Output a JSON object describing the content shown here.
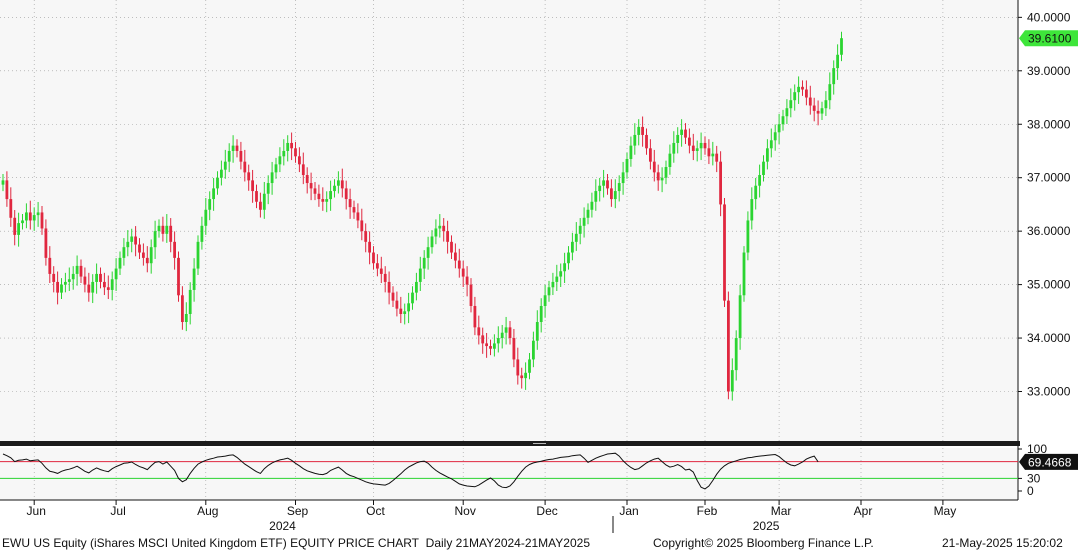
{
  "chart_data": {
    "type": "candlestick",
    "title": "EWU US Equity (iShares MSCI United Kingdom ETF) EQUITY PRICE CHART",
    "period": "Daily 21MAY2024-21MAY2025",
    "copyright": "Copyright© 2025 Bloomberg Finance L.P.",
    "timestamp": "21-May-2025 15:20:02",
    "price_axis": {
      "ylim": [
        32.25,
        40.2
      ],
      "ticks": [
        "33.0000",
        "34.0000",
        "35.0000",
        "36.0000",
        "37.0000",
        "38.0000",
        "39.0000",
        "40.0000"
      ],
      "last_value": "39.6100"
    },
    "months": [
      {
        "label": "Jun",
        "offset": 8
      },
      {
        "label": "Jul",
        "offset": 29
      },
      {
        "label": "Aug",
        "offset": 52
      },
      {
        "label": "Sep",
        "offset": 75
      },
      {
        "label": "Oct",
        "offset": 95
      },
      {
        "label": "Nov",
        "offset": 118
      },
      {
        "label": "Dec",
        "offset": 139
      },
      {
        "label": "Jan",
        "offset": 160
      },
      {
        "label": "Feb",
        "offset": 180
      },
      {
        "label": "Mar",
        "offset": 199
      },
      {
        "label": "Apr",
        "offset": 220
      },
      {
        "label": "May",
        "offset": 241
      }
    ],
    "years": [
      {
        "label": "2024",
        "offset": 75
      },
      {
        "label": "2025",
        "offset": 199
      }
    ],
    "closes": [
      36.95,
      36.6,
      36.25,
      35.93,
      36.15,
      36.2,
      36.35,
      36.2,
      36.3,
      36.35,
      36.05,
      35.5,
      35.2,
      35.05,
      34.85,
      35.0,
      35.05,
      35.1,
      35.2,
      35.35,
      35.15,
      35.0,
      34.85,
      35.05,
      35.2,
      35.05,
      34.95,
      34.9,
      35.1,
      35.3,
      35.5,
      35.7,
      35.8,
      35.9,
      35.75,
      35.6,
      35.5,
      35.4,
      35.7,
      36.0,
      36.1,
      35.95,
      36.1,
      35.8,
      35.5,
      34.8,
      34.3,
      34.45,
      34.9,
      35.3,
      35.8,
      36.1,
      36.4,
      36.6,
      36.8,
      37.0,
      37.15,
      37.3,
      37.5,
      37.6,
      37.5,
      37.3,
      37.1,
      36.95,
      36.75,
      36.55,
      36.4,
      36.7,
      36.9,
      37.1,
      37.25,
      37.4,
      37.5,
      37.65,
      37.55,
      37.4,
      37.25,
      37.05,
      36.9,
      36.8,
      36.7,
      36.6,
      36.55,
      36.6,
      36.75,
      36.85,
      36.95,
      36.8,
      36.6,
      36.45,
      36.35,
      36.2,
      36.0,
      35.8,
      35.6,
      35.4,
      35.3,
      35.2,
      35.05,
      34.85,
      34.7,
      34.55,
      34.45,
      34.5,
      34.65,
      34.85,
      35.05,
      35.3,
      35.5,
      35.7,
      35.9,
      36.05,
      36.1,
      36.0,
      35.8,
      35.6,
      35.45,
      35.3,
      35.15,
      35.0,
      34.6,
      34.2,
      34.05,
      33.9,
      33.85,
      33.8,
      33.9,
      34.0,
      34.1,
      34.2,
      34.0,
      33.6,
      33.3,
      33.25,
      33.35,
      33.6,
      33.95,
      34.3,
      34.6,
      34.8,
      34.95,
      35.05,
      35.15,
      35.25,
      35.4,
      35.6,
      35.8,
      35.95,
      36.1,
      36.25,
      36.4,
      36.55,
      36.75,
      36.85,
      36.95,
      36.8,
      36.6,
      36.75,
      36.9,
      37.1,
      37.35,
      37.6,
      37.8,
      37.95,
      37.8,
      37.55,
      37.3,
      37.1,
      36.95,
      37.0,
      37.2,
      37.45,
      37.65,
      37.8,
      37.9,
      37.75,
      37.6,
      37.5,
      37.55,
      37.65,
      37.55,
      37.4,
      37.45,
      37.3,
      36.5,
      34.7,
      33.0,
      33.4,
      34.0,
      34.8,
      35.6,
      36.2,
      36.6,
      36.85,
      37.05,
      37.3,
      37.55,
      37.7,
      37.85,
      38.0,
      38.15,
      38.3,
      38.45,
      38.6,
      38.7,
      38.65,
      38.5,
      38.35,
      38.25,
      38.2,
      38.3,
      38.45,
      38.75,
      39.05,
      39.3,
      39.61
    ],
    "lower_panel": {
      "ylim": [
        0,
        100
      ],
      "ticks": [
        "0",
        "30",
        "100"
      ],
      "reference_lines": [
        30,
        70
      ],
      "last_value": "69.4668",
      "values": [
        88,
        84,
        79,
        70,
        73,
        74,
        76,
        72,
        73,
        74,
        66,
        55,
        47,
        45,
        42,
        47,
        50,
        52,
        55,
        59,
        53,
        47,
        43,
        50,
        55,
        51,
        48,
        46,
        53,
        58,
        62,
        66,
        67,
        69,
        63,
        58,
        55,
        51,
        60,
        68,
        70,
        64,
        69,
        59,
        49,
        30,
        22,
        27,
        42,
        54,
        64,
        69,
        73,
        76,
        78,
        81,
        82,
        83,
        85,
        86,
        80,
        72,
        64,
        58,
        52,
        46,
        42,
        53,
        61,
        67,
        71,
        74,
        76,
        78,
        73,
        66,
        60,
        53,
        48,
        45,
        42,
        40,
        39,
        42,
        49,
        53,
        57,
        50,
        42,
        37,
        34,
        30,
        26,
        22,
        19,
        17,
        16,
        15,
        14,
        18,
        25,
        33,
        41,
        50,
        57,
        62,
        67,
        70,
        71,
        66,
        57,
        49,
        43,
        38,
        33,
        29,
        23,
        17,
        14,
        12,
        11,
        10,
        14,
        20,
        26,
        31,
        24,
        14,
        9,
        8,
        12,
        22,
        35,
        47,
        57,
        63,
        67,
        69,
        71,
        73,
        75,
        76,
        78,
        80,
        81,
        82,
        84,
        85,
        86,
        78,
        68,
        73,
        78,
        82,
        85,
        88,
        89,
        90,
        83,
        72,
        63,
        56,
        51,
        53,
        60,
        67,
        72,
        76,
        78,
        70,
        62,
        57,
        59,
        63,
        58,
        50,
        52,
        45,
        25,
        9,
        5,
        12,
        25,
        40,
        52,
        60,
        66,
        69,
        72,
        75,
        77,
        79,
        80,
        82,
        83,
        84,
        85,
        86,
        87,
        82,
        74,
        67,
        62,
        60,
        64,
        69,
        76,
        80,
        83,
        69.47
      ]
    }
  }
}
